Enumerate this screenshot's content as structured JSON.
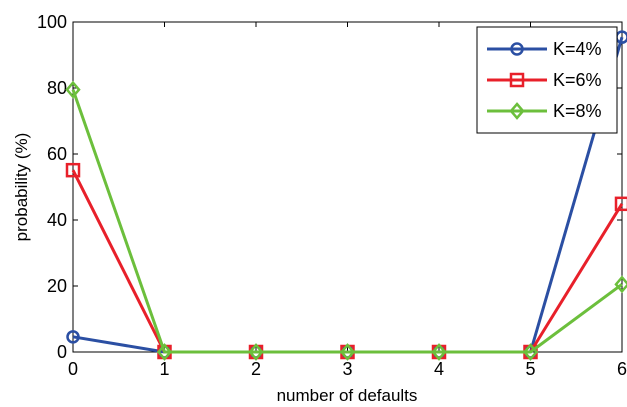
{
  "chart_data": {
    "type": "line",
    "xlabel": "number of defaults",
    "ylabel": "probability (%)",
    "x": [
      0,
      1,
      2,
      3,
      4,
      5,
      6
    ],
    "xlim": [
      0,
      6
    ],
    "ylim": [
      0,
      100
    ],
    "xticks": [
      "0",
      "1",
      "2",
      "3",
      "4",
      "5",
      "6"
    ],
    "yticks": [
      "0",
      "20",
      "40",
      "60",
      "80",
      "100"
    ],
    "grid": false,
    "legend_position": "top-right",
    "series": [
      {
        "name": "K=4%",
        "color": "#2b4fa3",
        "marker": "circle",
        "values": [
          4.6,
          0,
          0,
          0,
          0,
          0,
          95.4
        ]
      },
      {
        "name": "K=6%",
        "color": "#e8202a",
        "marker": "square",
        "values": [
          55.1,
          0,
          0,
          0,
          0,
          0,
          44.9
        ]
      },
      {
        "name": "K=8%",
        "color": "#6cbf3c",
        "marker": "diamond",
        "values": [
          79.5,
          0,
          0,
          0,
          0,
          0,
          20.5
        ]
      }
    ]
  }
}
